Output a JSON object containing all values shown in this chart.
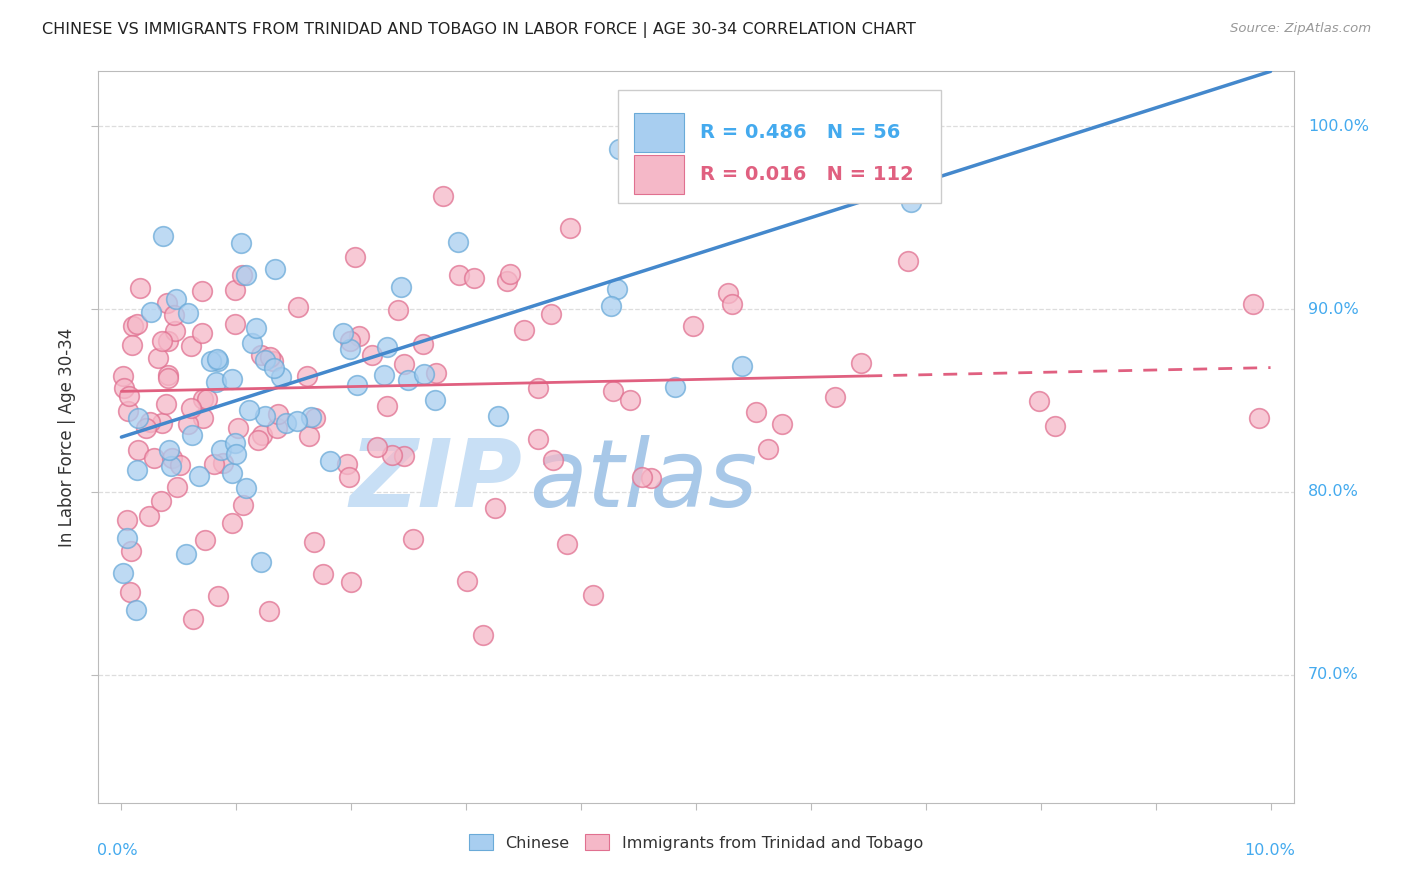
{
  "title": "CHINESE VS IMMIGRANTS FROM TRINIDAD AND TOBAGO IN LABOR FORCE | AGE 30-34 CORRELATION CHART",
  "source": "Source: ZipAtlas.com",
  "ylabel": "In Labor Force | Age 30-34",
  "R_chinese": 0.486,
  "N_chinese": 56,
  "R_tt": 0.016,
  "N_tt": 112,
  "color_chinese": "#a8cef0",
  "color_chinese_edge": "#6aaad8",
  "color_tt": "#f5b8c8",
  "color_tt_edge": "#e07090",
  "color_blue_line": "#4488cc",
  "color_pink_line": "#e06080",
  "color_blue_text": "#44aaee",
  "color_pink_text": "#e06080",
  "watermark_zip": "#c8dff5",
  "watermark_atlas": "#a8c8e8",
  "background_color": "#ffffff",
  "grid_color": "#dddddd",
  "legend_chinese": "Chinese",
  "legend_tt": "Immigrants from Trinidad and Tobago",
  "xmin": 0.0,
  "xmax": 0.1,
  "ymin": 0.63,
  "ymax": 1.03,
  "yticks": [
    0.7,
    0.8,
    0.9,
    1.0
  ],
  "ytick_labels": [
    "70.0%",
    "80.0%",
    "90.0%",
    "100.0%"
  ]
}
